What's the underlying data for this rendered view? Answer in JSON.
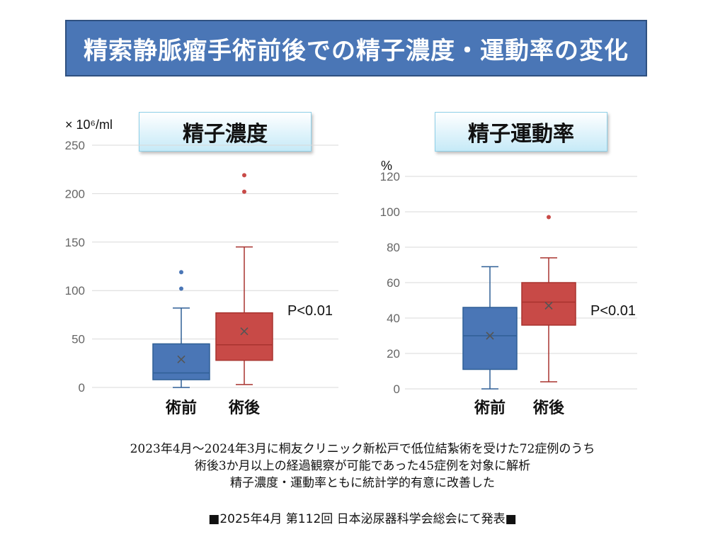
{
  "title": "精索静脈瘤手術前後での精子濃度・運動率の変化",
  "chart_data": [
    {
      "type": "box",
      "title": "精子濃度",
      "unit": "× 10⁶/ml",
      "ylim": [
        0,
        250
      ],
      "yticks": [
        0,
        50,
        100,
        150,
        200,
        250
      ],
      "categories": [
        "術前",
        "術後"
      ],
      "series": [
        {
          "name": "術前",
          "color": "#4a76b6",
          "edge": "#2f5f96",
          "min": 0,
          "q1": 8,
          "median": 15,
          "q3": 45,
          "max": 82,
          "mean": 29,
          "outliers": [
            102,
            119
          ]
        },
        {
          "name": "術後",
          "color": "#c84a47",
          "edge": "#a8332f",
          "min": 3,
          "q1": 28,
          "median": 44,
          "q3": 77,
          "max": 145,
          "mean": 58,
          "outliers": [
            202,
            219
          ]
        }
      ],
      "annotation": "P<0.01"
    },
    {
      "type": "box",
      "title": "精子運動率",
      "unit": "%",
      "ylim": [
        0,
        120
      ],
      "yticks": [
        0,
        20,
        40,
        60,
        80,
        100,
        120
      ],
      "categories": [
        "術前",
        "術後"
      ],
      "series": [
        {
          "name": "術前",
          "color": "#4a76b6",
          "edge": "#2f5f96",
          "min": 0,
          "q1": 11,
          "median": 30,
          "q3": 46,
          "max": 69,
          "mean": 30,
          "outliers": []
        },
        {
          "name": "術後",
          "color": "#c84a47",
          "edge": "#a8332f",
          "min": 4,
          "q1": 36,
          "median": 49,
          "q3": 60,
          "max": 74,
          "mean": 47,
          "outliers": [
            97
          ]
        }
      ],
      "annotation": "P<0.01"
    }
  ],
  "footer": {
    "line1": "2023年4月～2024年3月に桐友クリニック新松戸で低位結紮術を受けた72症例のうち",
    "line2": "術後3か月以上の経過観察が可能であった45症例を対象に解析",
    "line3": "精子濃度・運動率ともに統計学的有意に改善した",
    "note": "■2025年4月 第112回 日本泌尿器科学会総会にて発表■"
  }
}
